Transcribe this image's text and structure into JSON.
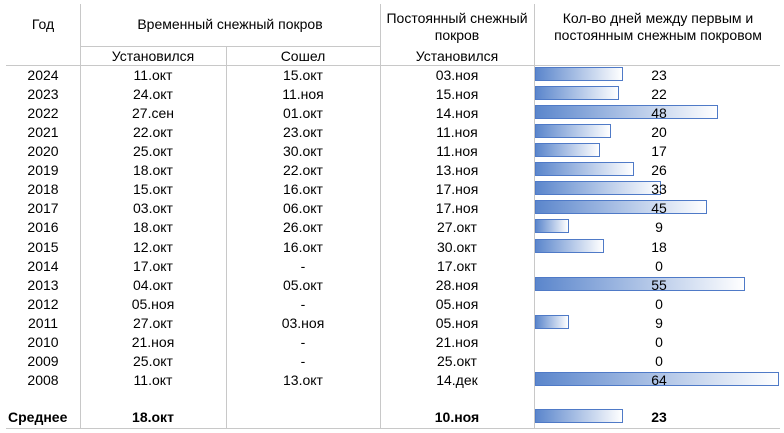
{
  "header": {
    "year": "Год",
    "temporary": "Временный снежный покров",
    "permanent": "Постоянный снежный покров",
    "days": "Кол-во дней между первым и постоянным снежным покровом",
    "established": "Установился",
    "melted": "Сошел",
    "permanent_established": "Установился"
  },
  "table": {
    "rows": [
      [
        "2024",
        "11.окт",
        "15.окт",
        "03.ноя",
        23
      ],
      [
        "2023",
        "24.окт",
        "11.ноя",
        "15.ноя",
        22
      ],
      [
        "2022",
        "27.сен",
        "01.окт",
        "14.ноя",
        48
      ],
      [
        "2021",
        "22.окт",
        "23.окт",
        "11.ноя",
        20
      ],
      [
        "2020",
        "25.окт",
        "30.окт",
        "11.ноя",
        17
      ],
      [
        "2019",
        "18.окт",
        "22.окт",
        "13.ноя",
        26
      ],
      [
        "2018",
        "15.окт",
        "16.окт",
        "17.ноя",
        33
      ],
      [
        "2017",
        "03.окт",
        "06.окт",
        "17.ноя",
        45
      ],
      [
        "2016",
        "18.окт",
        "26.окт",
        "27.окт",
        9
      ],
      [
        "2015",
        "12.окт",
        "16.окт",
        "30.окт",
        18
      ],
      [
        "2014",
        "17.окт",
        "-",
        "17.окт",
        0
      ],
      [
        "2013",
        "04.окт",
        "05.окт",
        "28.ноя",
        55
      ],
      [
        "2012",
        "05.ноя",
        "-",
        "05.ноя",
        0
      ],
      [
        "2011",
        "27.окт",
        "03.ноя",
        "05.ноя",
        9
      ],
      [
        "2010",
        "21.ноя",
        "-",
        "21.ноя",
        0
      ],
      [
        "2009",
        "25.окт",
        "-",
        "25.окт",
        0
      ],
      [
        "2008",
        "11.окт",
        "13.окт",
        "14.дек",
        64
      ]
    ],
    "average": {
      "label": "Среднее",
      "temp_established": "18.окт",
      "permanent_established": "10.ноя",
      "days": 23
    }
  }
}
